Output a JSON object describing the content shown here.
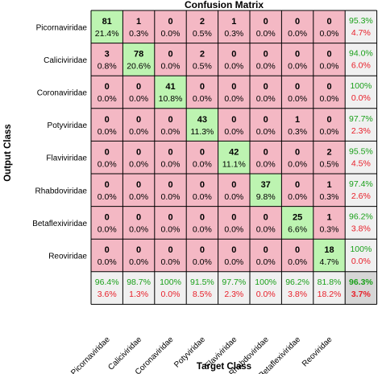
{
  "chart_data": {
    "type": "heatmap",
    "title": "Confusion Matrix",
    "xlabel": "Target Class",
    "ylabel": "Output Class",
    "classes": [
      "Picornaviridae",
      "Caliciviridae",
      "Coronaviridae",
      "Potyviridae",
      "Flaviviridae",
      "Rhabdoviridae",
      "Betaflexiviridae",
      "Reoviridae"
    ],
    "counts": [
      [
        81,
        1,
        0,
        2,
        1,
        0,
        0,
        0
      ],
      [
        3,
        78,
        0,
        2,
        0,
        0,
        0,
        0
      ],
      [
        0,
        0,
        41,
        0,
        0,
        0,
        0,
        0
      ],
      [
        0,
        0,
        0,
        43,
        0,
        0,
        1,
        0
      ],
      [
        0,
        0,
        0,
        0,
        42,
        0,
        0,
        2
      ],
      [
        0,
        0,
        0,
        0,
        0,
        37,
        0,
        1
      ],
      [
        0,
        0,
        0,
        0,
        0,
        0,
        25,
        1
      ],
      [
        0,
        0,
        0,
        0,
        0,
        0,
        0,
        18
      ]
    ],
    "cell_percents": [
      [
        "21.4%",
        "0.3%",
        "0.0%",
        "0.5%",
        "0.3%",
        "0.0%",
        "0.0%",
        "0.0%"
      ],
      [
        "0.8%",
        "20.6%",
        "0.0%",
        "0.5%",
        "0.0%",
        "0.0%",
        "0.0%",
        "0.0%"
      ],
      [
        "0.0%",
        "0.0%",
        "10.8%",
        "0.0%",
        "0.0%",
        "0.0%",
        "0.0%",
        "0.0%"
      ],
      [
        "0.0%",
        "0.0%",
        "0.0%",
        "11.3%",
        "0.0%",
        "0.0%",
        "0.3%",
        "0.0%"
      ],
      [
        "0.0%",
        "0.0%",
        "0.0%",
        "0.0%",
        "11.1%",
        "0.0%",
        "0.0%",
        "0.5%"
      ],
      [
        "0.0%",
        "0.0%",
        "0.0%",
        "0.0%",
        "0.0%",
        "9.8%",
        "0.0%",
        "0.3%"
      ],
      [
        "0.0%",
        "0.0%",
        "0.0%",
        "0.0%",
        "0.0%",
        "0.0%",
        "6.6%",
        "0.3%"
      ],
      [
        "0.0%",
        "0.0%",
        "0.0%",
        "0.0%",
        "0.0%",
        "0.0%",
        "0.0%",
        "4.7%"
      ]
    ],
    "row_summary": [
      [
        "95.3%",
        "4.7%"
      ],
      [
        "94.0%",
        "6.0%"
      ],
      [
        "100%",
        "0.0%"
      ],
      [
        "97.7%",
        "2.3%"
      ],
      [
        "95.5%",
        "4.5%"
      ],
      [
        "97.4%",
        "2.6%"
      ],
      [
        "96.2%",
        "3.8%"
      ],
      [
        "100%",
        "0.0%"
      ]
    ],
    "col_summary": [
      [
        "96.4%",
        "3.6%"
      ],
      [
        "98.7%",
        "1.3%"
      ],
      [
        "100%",
        "0.0%"
      ],
      [
        "91.5%",
        "8.5%"
      ],
      [
        "97.7%",
        "2.3%"
      ],
      [
        "100%",
        "0.0%"
      ],
      [
        "96.2%",
        "3.8%"
      ],
      [
        "81.8%",
        "18.2%"
      ]
    ],
    "overall": [
      "96.3%",
      "3.7%"
    ],
    "colors": {
      "correct": "#bdf4b1",
      "incorrect": "#f4b8c4",
      "summary": "#f0f0f0",
      "overall": "#d6d6d6",
      "good_text": "#1aa01a",
      "bad_text": "#e8202a"
    }
  }
}
